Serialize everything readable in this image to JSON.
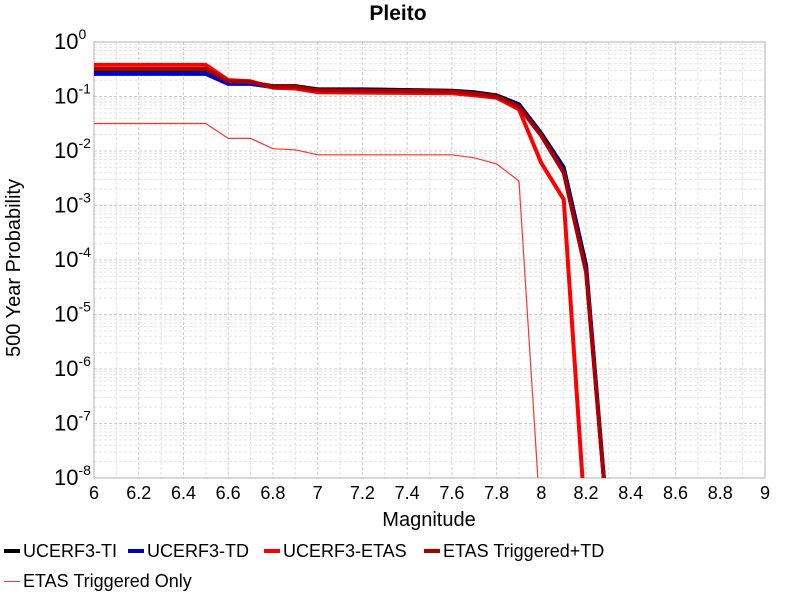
{
  "chart_data": {
    "type": "line",
    "title": "Pleito",
    "xlabel": "Magnitude",
    "ylabel": "500 Year Probability",
    "xlim": [
      6,
      9
    ],
    "ylim": [
      1e-08,
      1
    ],
    "yscale": "log",
    "x_ticks": [
      "6",
      "6.2",
      "6.4",
      "6.6",
      "6.8",
      "7",
      "7.2",
      "7.4",
      "7.6",
      "7.8",
      "8",
      "8.2",
      "8.4",
      "8.6",
      "8.8",
      "9"
    ],
    "y_ticks": [
      {
        "base": "10",
        "exp": "0"
      },
      {
        "base": "10",
        "exp": "-1"
      },
      {
        "base": "10",
        "exp": "-2"
      },
      {
        "base": "10",
        "exp": "-3"
      },
      {
        "base": "10",
        "exp": "-4"
      },
      {
        "base": "10",
        "exp": "-5"
      },
      {
        "base": "10",
        "exp": "-6"
      },
      {
        "base": "10",
        "exp": "-7"
      },
      {
        "base": "10",
        "exp": "-8"
      }
    ],
    "grid": true,
    "legend_position": "bottom",
    "series": [
      {
        "name": "UCERF3-TI",
        "color": "#000000",
        "width": 4,
        "x": [
          6.0,
          6.5,
          6.6,
          6.7,
          6.8,
          6.9,
          7.0,
          7.2,
          7.6,
          7.7,
          7.8,
          7.9,
          8.0,
          8.1,
          8.2,
          8.3
        ],
        "y": [
          0.28,
          0.28,
          0.18,
          0.18,
          0.155,
          0.155,
          0.135,
          0.135,
          0.128,
          0.12,
          0.105,
          0.072,
          0.021,
          0.005,
          8e-05,
          1e-09
        ]
      },
      {
        "name": "UCERF3-TD",
        "color": "#0000cc",
        "width": 4,
        "x": [
          6.0,
          6.5,
          6.6,
          6.7,
          6.8,
          6.9,
          7.0,
          7.2,
          7.6,
          7.7,
          7.8,
          7.9,
          8.0,
          8.1,
          8.2,
          8.3
        ],
        "y": [
          0.26,
          0.26,
          0.17,
          0.17,
          0.148,
          0.148,
          0.13,
          0.13,
          0.124,
          0.115,
          0.1,
          0.068,
          0.02,
          0.0045,
          7e-05,
          1e-09
        ]
      },
      {
        "name": "UCERF3-ETAS",
        "color": "#ff0000",
        "width": 4,
        "x": [
          6.0,
          6.5,
          6.6,
          6.7,
          6.8,
          6.9,
          7.0,
          7.2,
          7.6,
          7.7,
          7.8,
          7.9,
          8.0,
          8.1,
          8.2
        ],
        "y": [
          0.38,
          0.38,
          0.2,
          0.19,
          0.145,
          0.14,
          0.12,
          0.118,
          0.115,
          0.105,
          0.095,
          0.058,
          0.006,
          0.0013,
          1e-09
        ]
      },
      {
        "name": "ETAS Triggered+TD",
        "color": "#aa0000",
        "width": 4,
        "x": [
          6.0,
          6.5,
          6.6,
          6.7,
          6.8,
          6.9,
          7.0,
          7.2,
          7.6,
          7.7,
          7.8,
          7.9,
          8.0,
          8.1,
          8.2,
          8.3
        ],
        "y": [
          0.32,
          0.32,
          0.19,
          0.185,
          0.152,
          0.15,
          0.13,
          0.128,
          0.124,
          0.113,
          0.1,
          0.065,
          0.019,
          0.004,
          6e-05,
          1e-09
        ]
      },
      {
        "name": "ETAS Triggered Only",
        "color": "#ff3333",
        "width": 1.2,
        "x": [
          6.0,
          6.5,
          6.6,
          6.7,
          6.8,
          6.9,
          7.0,
          7.2,
          7.6,
          7.7,
          7.8,
          7.9,
          8.0
        ],
        "y": [
          0.032,
          0.032,
          0.017,
          0.017,
          0.011,
          0.0105,
          0.0085,
          0.0085,
          0.0085,
          0.0075,
          0.0058,
          0.0028,
          1e-09
        ]
      }
    ]
  }
}
